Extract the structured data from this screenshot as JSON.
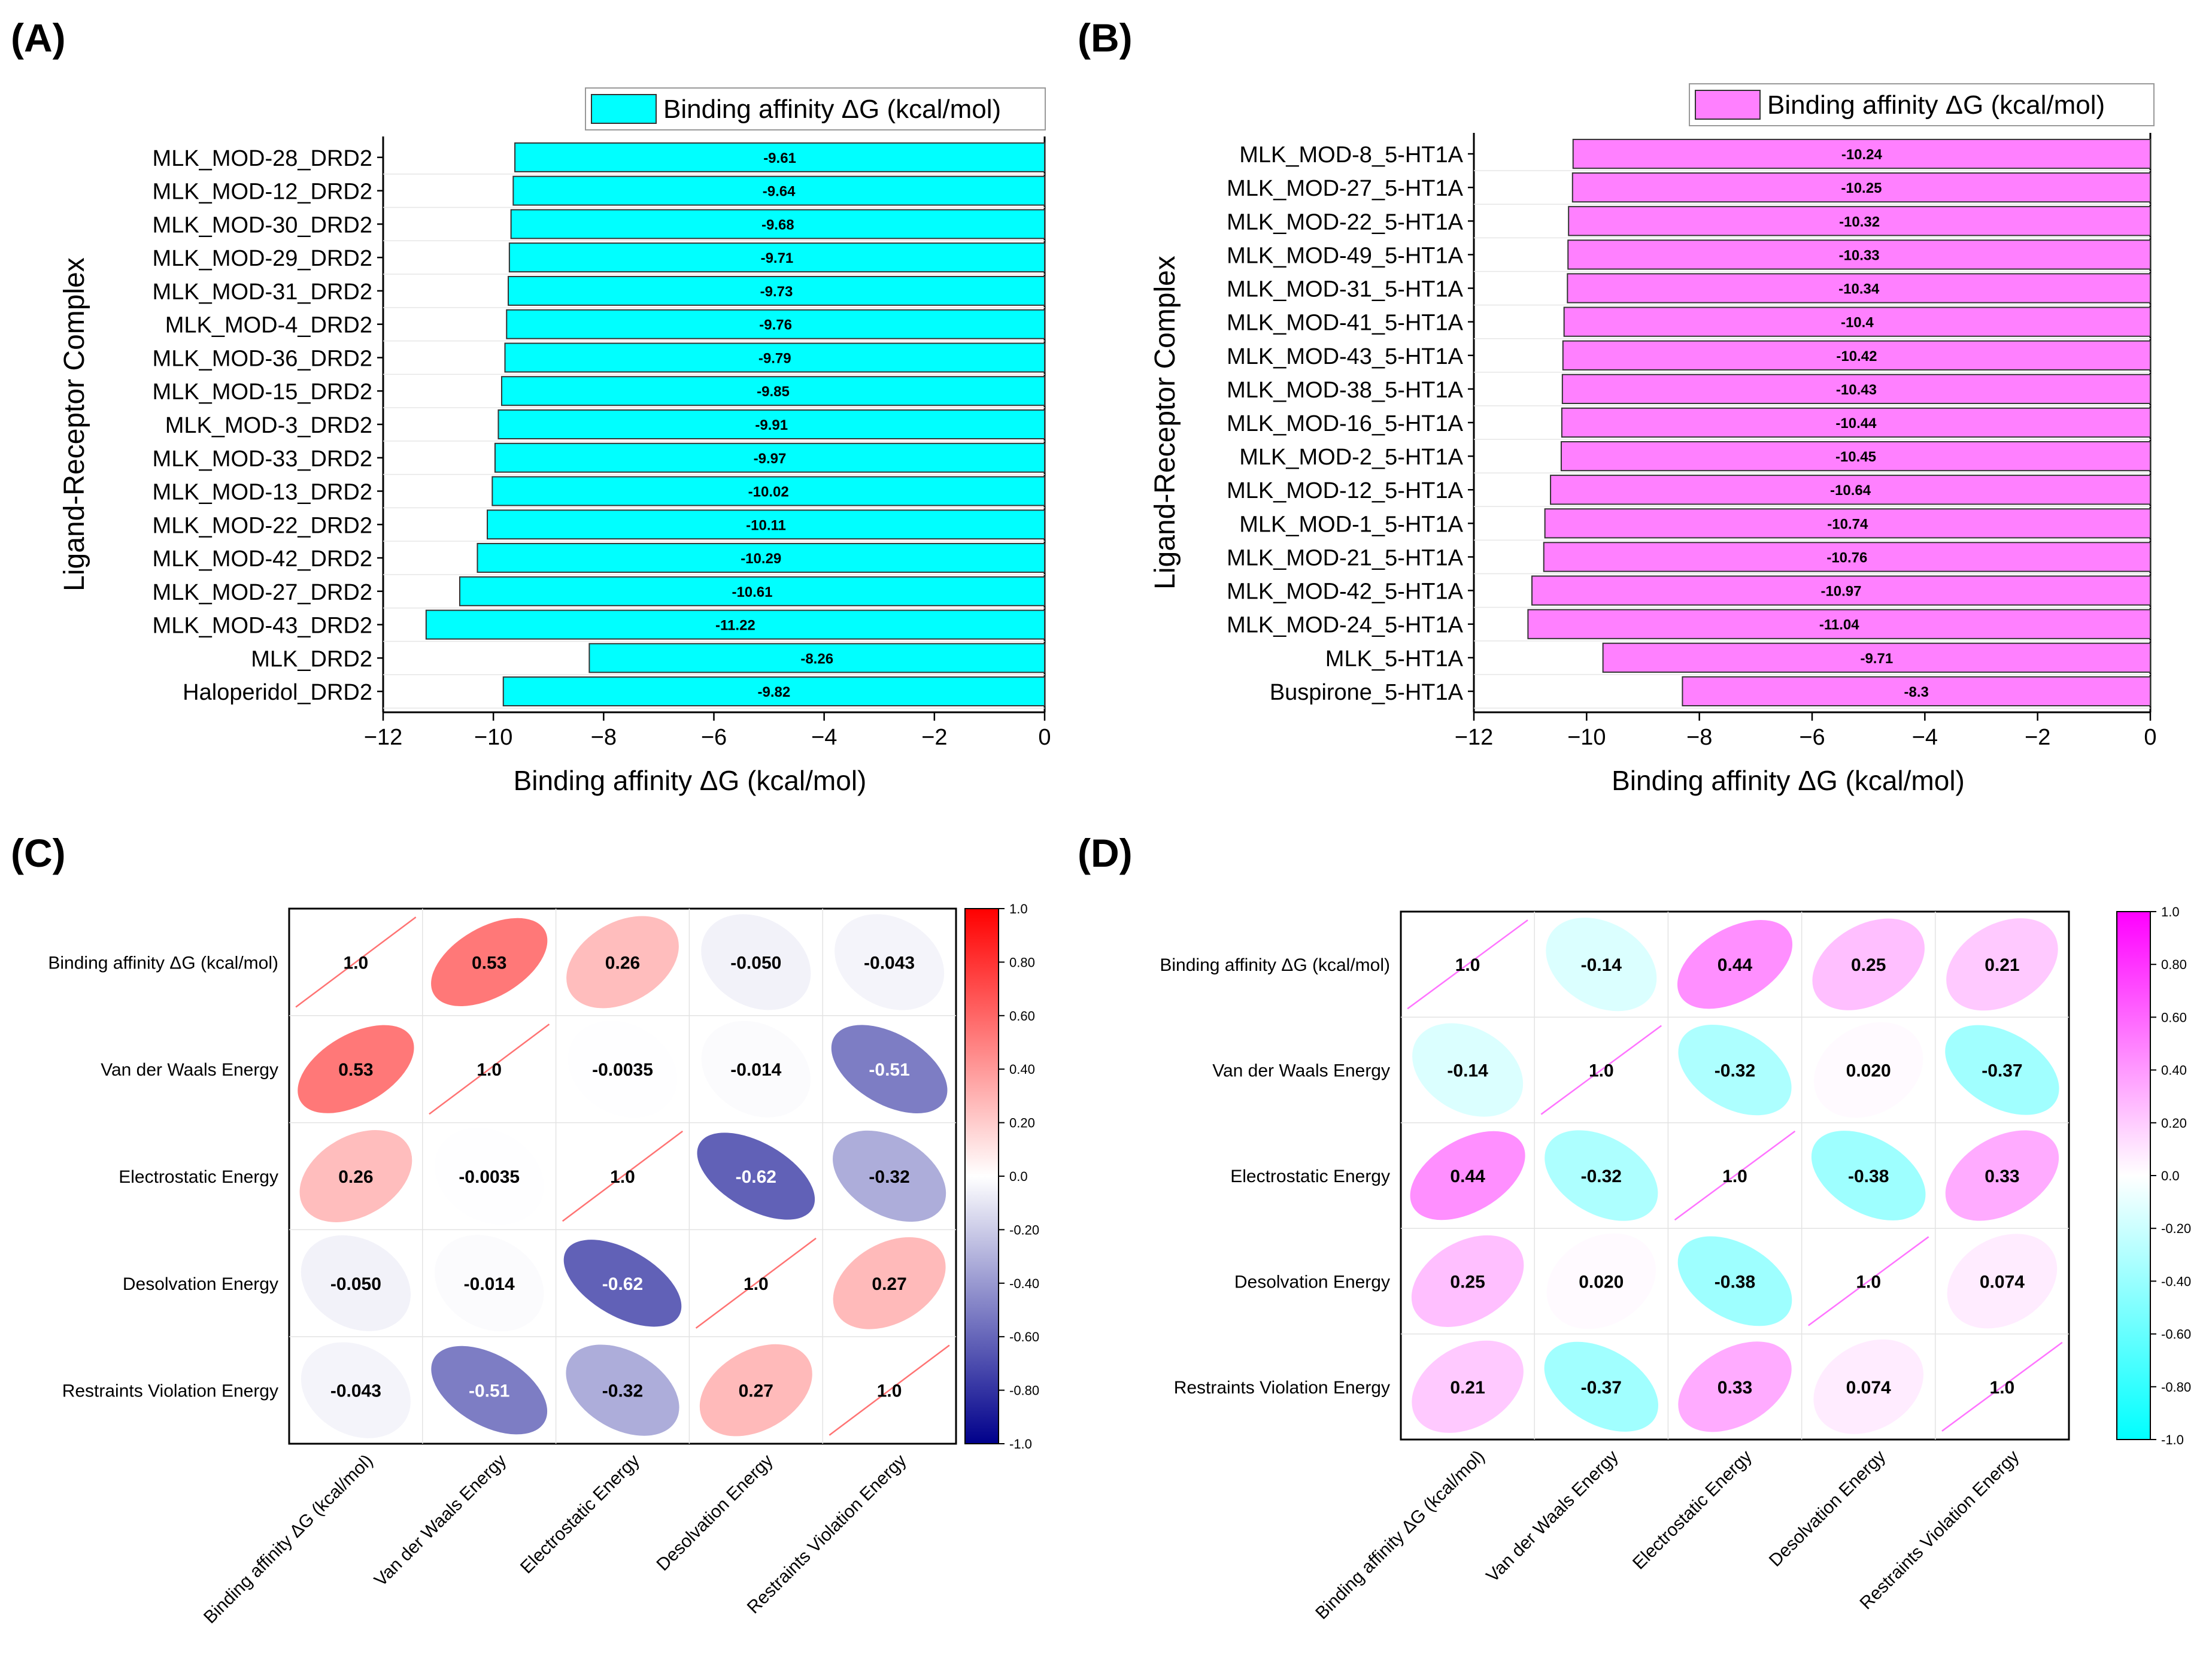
{
  "colors": {
    "cyan": "#00ffff",
    "magenta": "#ff80ff",
    "red": "#ff0000",
    "blue": "#00008b",
    "axis": "#000000"
  },
  "panels": {
    "A": "(A)",
    "B": "(B)",
    "C": "(C)",
    "D": "(D)"
  },
  "chart_data": [
    {
      "id": "A",
      "type": "bar",
      "orientation": "horizontal",
      "legend": "Binding affinity ΔG (kcal/mol)",
      "legend_position": "top-right",
      "xlabel": "Binding affinity ΔG (kcal/mol)",
      "ylabel": "Ligand-Receptor Complex",
      "xlim": [
        -12,
        0
      ],
      "xticks": [
        "−12",
        "−10",
        "−8",
        "−6",
        "−4",
        "−2",
        "0"
      ],
      "color": "#00ffff",
      "categories": [
        "MLK_MOD-28_DRD2",
        "MLK_MOD-12_DRD2",
        "MLK_MOD-30_DRD2",
        "MLK_MOD-29_DRD2",
        "MLK_MOD-31_DRD2",
        "MLK_MOD-4_DRD2",
        "MLK_MOD-36_DRD2",
        "MLK_MOD-15_DRD2",
        "MLK_MOD-3_DRD2",
        "MLK_MOD-33_DRD2",
        "MLK_MOD-13_DRD2",
        "MLK_MOD-22_DRD2",
        "MLK_MOD-42_DRD2",
        "MLK_MOD-27_DRD2",
        "MLK_MOD-43_DRD2",
        "MLK_DRD2",
        "Haloperidol_DRD2"
      ],
      "values": [
        -9.61,
        -9.64,
        -9.68,
        -9.71,
        -9.73,
        -9.76,
        -9.79,
        -9.85,
        -9.91,
        -9.97,
        -10.02,
        -10.11,
        -10.29,
        -10.61,
        -11.22,
        -8.26,
        -9.82
      ],
      "value_labels": [
        "-9.61",
        "-9.64",
        "-9.68",
        "-9.71",
        "-9.73",
        "-9.76",
        "-9.79",
        "-9.85",
        "-9.91",
        "-9.97",
        "-10.02",
        "-10.11",
        "-10.29",
        "-10.61",
        "-11.22",
        "-8.26",
        "-9.82"
      ]
    },
    {
      "id": "B",
      "type": "bar",
      "orientation": "horizontal",
      "legend": "Binding affinity ΔG (kcal/mol)",
      "legend_position": "top-right",
      "xlabel": "Binding affinity ΔG (kcal/mol)",
      "ylabel": "Ligand-Receptor Complex",
      "xlim": [
        -12,
        0
      ],
      "xticks": [
        "−12",
        "−10",
        "−8",
        "−6",
        "−4",
        "−2",
        "0"
      ],
      "color": "#ff80ff",
      "categories": [
        "MLK_MOD-8_5-HT1A",
        "MLK_MOD-27_5-HT1A",
        "MLK_MOD-22_5-HT1A",
        "MLK_MOD-49_5-HT1A",
        "MLK_MOD-31_5-HT1A",
        "MLK_MOD-41_5-HT1A",
        "MLK_MOD-43_5-HT1A",
        "MLK_MOD-38_5-HT1A",
        "MLK_MOD-16_5-HT1A",
        "MLK_MOD-2_5-HT1A",
        "MLK_MOD-12_5-HT1A",
        "MLK_MOD-1_5-HT1A",
        "MLK_MOD-21_5-HT1A",
        "MLK_MOD-42_5-HT1A",
        "MLK_MOD-24_5-HT1A",
        "MLK_5-HT1A",
        "Buspirone_5-HT1A"
      ],
      "values": [
        -10.24,
        -10.25,
        -10.32,
        -10.33,
        -10.34,
        -10.4,
        -10.42,
        -10.43,
        -10.44,
        -10.45,
        -10.64,
        -10.74,
        -10.76,
        -10.97,
        -11.04,
        -9.71,
        -8.3
      ],
      "value_labels": [
        "-10.24",
        "-10.25",
        "-10.32",
        "-10.33",
        "-10.34",
        "-10.4",
        "-10.42",
        "-10.43",
        "-10.44",
        "-10.45",
        "-10.64",
        "-10.74",
        "-10.76",
        "-10.97",
        "-11.04",
        "-9.71",
        "-8.3"
      ]
    },
    {
      "id": "C",
      "type": "heatmap",
      "style": "correlation-ellipse",
      "colormap": [
        "#00008b",
        "#ffffff",
        "#ff0000"
      ],
      "vmin": -1,
      "vmax": 1,
      "colorbar_ticks": [
        "1.0",
        "0.80",
        "0.60",
        "0.40",
        "0.20",
        "0.0",
        "-0.20",
        "-0.40",
        "-0.60",
        "-0.80",
        "-1.0"
      ],
      "colorbar_position": "right",
      "variables": [
        "Binding affinity ΔG (kcal/mol)",
        "Van der Waals Energy",
        "Electrostatic Energy",
        "Desolvation Energy",
        "Restraints Violation Energy"
      ],
      "matrix": [
        [
          1.0,
          0.53,
          0.26,
          -0.05,
          -0.043
        ],
        [
          0.53,
          1.0,
          -0.0035,
          -0.014,
          -0.51
        ],
        [
          0.26,
          -0.0035,
          1.0,
          -0.62,
          -0.32
        ],
        [
          -0.05,
          -0.014,
          -0.62,
          1.0,
          0.27
        ],
        [
          -0.043,
          -0.51,
          -0.32,
          0.27,
          1.0
        ]
      ],
      "labels": [
        [
          "1.0",
          "0.53",
          "0.26",
          "-0.050",
          "-0.043"
        ],
        [
          "0.53",
          "1.0",
          "-0.0035",
          "-0.014",
          "-0.51"
        ],
        [
          "0.26",
          "-0.0035",
          "1.0",
          "-0.62",
          "-0.32"
        ],
        [
          "-0.050",
          "-0.014",
          "-0.62",
          "1.0",
          "0.27"
        ],
        [
          "-0.043",
          "-0.51",
          "-0.32",
          "0.27",
          "1.0"
        ]
      ]
    },
    {
      "id": "D",
      "type": "heatmap",
      "style": "correlation-ellipse",
      "colormap": [
        "#00ffff",
        "#ffffff",
        "#ff00ff"
      ],
      "vmin": -1,
      "vmax": 1,
      "colorbar_ticks": [
        "1.0",
        "0.80",
        "0.60",
        "0.40",
        "0.20",
        "0.0",
        "-0.20",
        "-0.40",
        "-0.60",
        "-0.80",
        "-1.0"
      ],
      "colorbar_position": "right",
      "variables": [
        "Binding affinity ΔG (kcal/mol)",
        "Van der Waals Energy",
        "Electrostatic Energy",
        "Desolvation Energy",
        "Restraints Violation Energy"
      ],
      "matrix": [
        [
          1.0,
          -0.14,
          0.44,
          0.25,
          0.21
        ],
        [
          -0.14,
          1.0,
          -0.32,
          0.02,
          -0.37
        ],
        [
          0.44,
          -0.32,
          1.0,
          -0.38,
          0.33
        ],
        [
          0.25,
          0.02,
          -0.38,
          1.0,
          0.074
        ],
        [
          0.21,
          -0.37,
          0.33,
          0.074,
          1.0
        ]
      ],
      "labels": [
        [
          "1.0",
          "-0.14",
          "0.44",
          "0.25",
          "0.21"
        ],
        [
          "-0.14",
          "1.0",
          "-0.32",
          "0.020",
          "-0.37"
        ],
        [
          "0.44",
          "-0.32",
          "1.0",
          "-0.38",
          "0.33"
        ],
        [
          "0.25",
          "0.020",
          "-0.38",
          "1.0",
          "0.074"
        ],
        [
          "0.21",
          "-0.37",
          "0.33",
          "0.074",
          "1.0"
        ]
      ]
    }
  ]
}
